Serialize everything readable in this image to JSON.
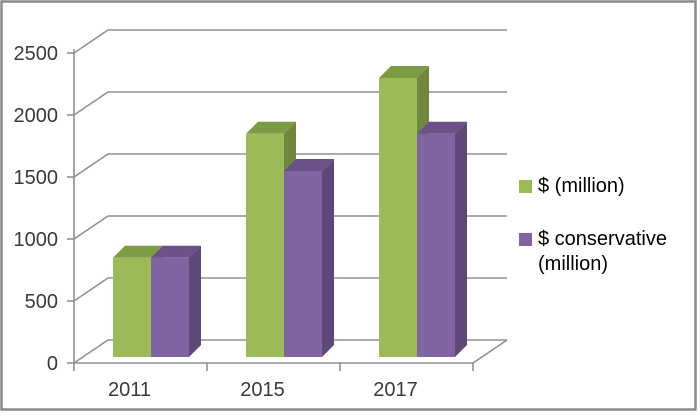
{
  "chart_data": {
    "type": "bar",
    "variant": "3d-clustered-column",
    "categories": [
      "2011",
      "2015",
      "2017"
    ],
    "series": [
      {
        "name": "$ (million)",
        "color": "#9bbb59",
        "color_top": "#7d9a44",
        "color_side": "#6f883d",
        "values": [
          800,
          1800,
          2250
        ]
      },
      {
        "name": "$ conservative (million)",
        "color": "#8064a2",
        "color_top": "#6a5289",
        "color_side": "#5d4877",
        "values": [
          800,
          1500,
          1800
        ]
      }
    ],
    "ylim": [
      0,
      2500
    ],
    "ytick_step": 500,
    "yticks": [
      "0",
      "500",
      "1000",
      "1500",
      "2000",
      "2500"
    ],
    "grid": true,
    "legend_position": "right",
    "axis_color": "#8f8f8f",
    "frame_color": "#8a8a8a",
    "label_color": "#3a3a3a",
    "background": "#ffffff"
  }
}
